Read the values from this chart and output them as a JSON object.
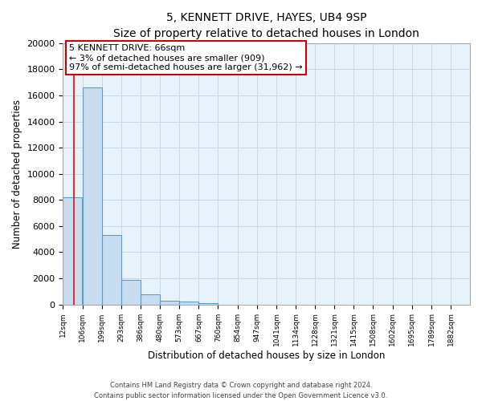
{
  "title": "5, KENNETT DRIVE, HAYES, UB4 9SP",
  "subtitle": "Size of property relative to detached houses in London",
  "xlabel": "Distribution of detached houses by size in London",
  "ylabel": "Number of detached properties",
  "bar_labels": [
    "12sqm",
    "106sqm",
    "199sqm",
    "293sqm",
    "386sqm",
    "480sqm",
    "573sqm",
    "667sqm",
    "760sqm",
    "854sqm",
    "947sqm",
    "1041sqm",
    "1134sqm",
    "1228sqm",
    "1321sqm",
    "1415sqm",
    "1508sqm",
    "1602sqm",
    "1695sqm",
    "1789sqm",
    "1882sqm"
  ],
  "bar_values": [
    8200,
    16600,
    5300,
    1850,
    750,
    300,
    200,
    100,
    0,
    0,
    0,
    0,
    0,
    0,
    0,
    0,
    0,
    0,
    0,
    0,
    0
  ],
  "bar_color": "#c8ddef",
  "bar_edge_color": "#5a9ec8",
  "annotation_line1": "5 KENNETT DRIVE: 66sqm",
  "annotation_line2": "← 3% of detached houses are smaller (909)",
  "annotation_line3": "97% of semi-detached houses are larger (31,962) →",
  "red_line_x": 66,
  "ylim": [
    0,
    20000
  ],
  "bin_width": 93,
  "yticks": [
    0,
    2000,
    4000,
    6000,
    8000,
    10000,
    12000,
    14000,
    16000,
    18000,
    20000
  ],
  "grid_color": "#c8d8e8",
  "background_color": "#e8f2fa",
  "footer_line1": "Contains HM Land Registry data © Crown copyright and database right 2024.",
  "footer_line2": "Contains public sector information licensed under the Open Government Licence v3.0."
}
